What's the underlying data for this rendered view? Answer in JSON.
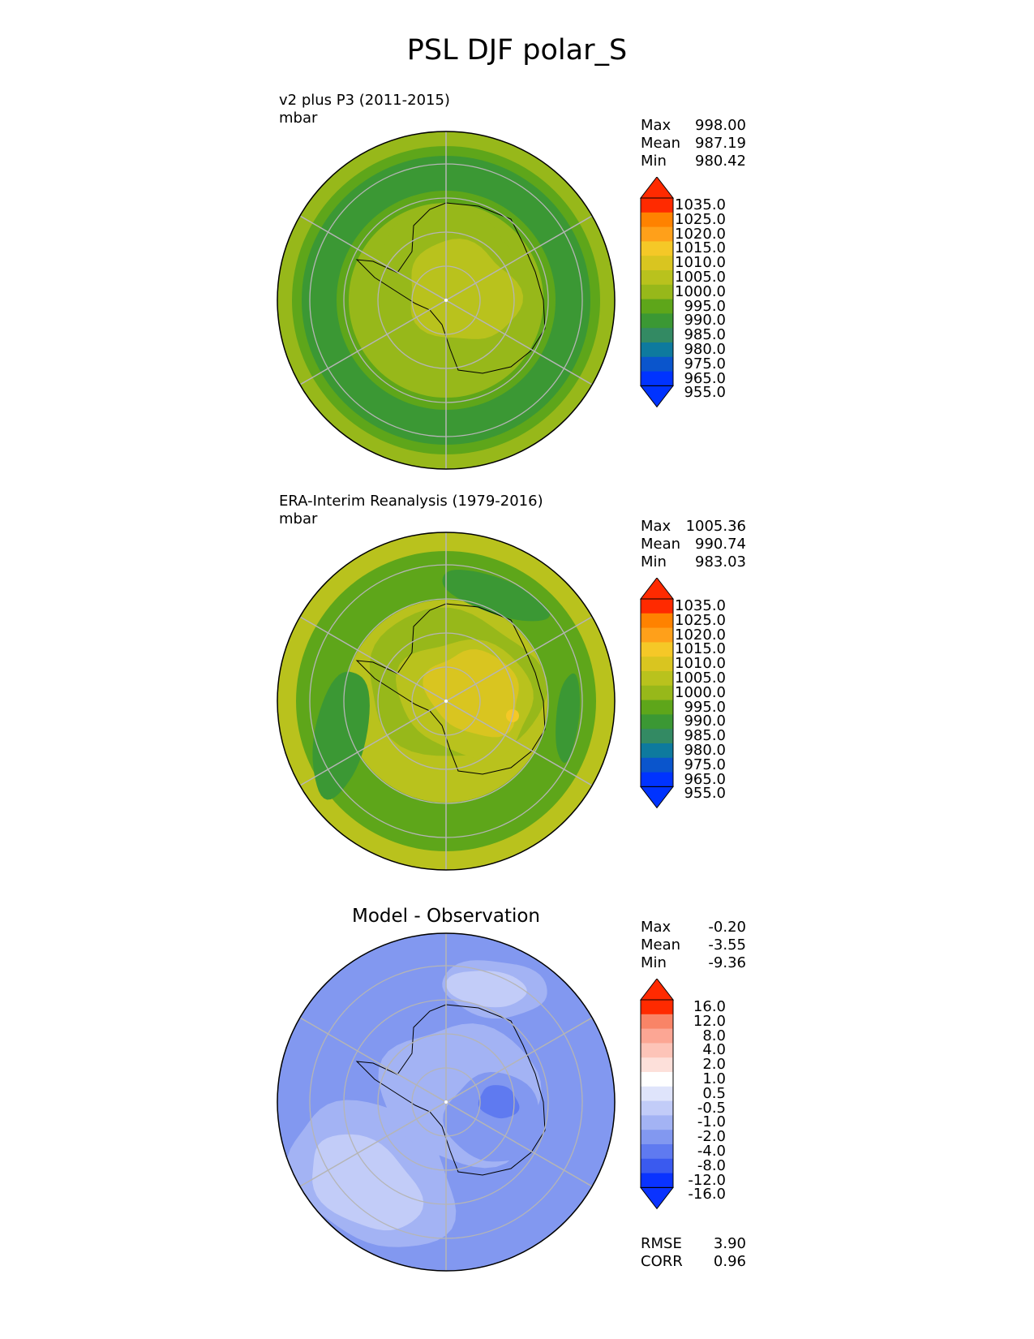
{
  "title": "PSL DJF polar_S",
  "panels": [
    {
      "title": "v2 plus P3 (2011-2015)",
      "units": "mbar",
      "stats": [
        {
          "label": "Max",
          "value": "998.00"
        },
        {
          "label": "Mean",
          "value": "987.19"
        },
        {
          "label": "Min",
          "value": "980.42"
        }
      ]
    },
    {
      "title": "ERA-Interim Reanalysis (1979-2016)",
      "units": "mbar",
      "stats": [
        {
          "label": "Max",
          "value": "1005.36"
        },
        {
          "label": "Mean",
          "value": "990.74"
        },
        {
          "label": "Min",
          "value": "983.03"
        }
      ]
    },
    {
      "title": "Model - Observation",
      "stats": [
        {
          "label": "Max",
          "value": "-0.20"
        },
        {
          "label": "Mean",
          "value": "-3.55"
        },
        {
          "label": "Min",
          "value": "-9.36"
        }
      ],
      "metrics": [
        {
          "label": "RMSE",
          "value": "3.90"
        },
        {
          "label": "CORR",
          "value": "0.96"
        }
      ]
    }
  ],
  "chart_data": [
    {
      "type": "heatmap",
      "projection": "south-polar-stereographic",
      "title": "v2 plus P3 (2011-2015)",
      "units": "mbar",
      "colorbar": {
        "labels": [
          "1035.0",
          "1025.0",
          "1020.0",
          "1015.0",
          "1010.0",
          "1005.0",
          "1000.0",
          "995.0",
          "990.0",
          "985.0",
          "980.0",
          "975.0",
          "965.0",
          "955.0"
        ],
        "colors": [
          "#ff2a00",
          "#ff6500",
          "#ff8200",
          "#ffa01a",
          "#f5c827",
          "#d9c520",
          "#b9c21d",
          "#97b81a",
          "#5ea61a",
          "#3b9834",
          "#338a63",
          "#0e7a9e",
          "#0a55cc",
          "#0033ff"
        ],
        "extend": "both"
      },
      "stats": {
        "max": 998.0,
        "mean": 987.19,
        "min": 980.42
      }
    },
    {
      "type": "heatmap",
      "projection": "south-polar-stereographic",
      "title": "ERA-Interim Reanalysis (1979-2016)",
      "units": "mbar",
      "colorbar": {
        "labels": [
          "1035.0",
          "1025.0",
          "1020.0",
          "1015.0",
          "1010.0",
          "1005.0",
          "1000.0",
          "995.0",
          "990.0",
          "985.0",
          "980.0",
          "975.0",
          "965.0",
          "955.0"
        ],
        "colors": [
          "#ff2a00",
          "#ff6500",
          "#ff8200",
          "#ffa01a",
          "#f5c827",
          "#d9c520",
          "#b9c21d",
          "#97b81a",
          "#5ea61a",
          "#3b9834",
          "#338a63",
          "#0e7a9e",
          "#0a55cc",
          "#0033ff"
        ],
        "extend": "both"
      },
      "stats": {
        "max": 1005.36,
        "mean": 990.74,
        "min": 983.03
      }
    },
    {
      "type": "heatmap",
      "projection": "south-polar-stereographic",
      "title": "Model - Observation",
      "colorbar": {
        "labels": [
          "16.0",
          "12.0",
          "8.0",
          "4.0",
          "2.0",
          "1.0",
          "0.5",
          "-0.5",
          "-1.0",
          "-2.0",
          "-4.0",
          "-8.0",
          "-12.0",
          "-16.0"
        ],
        "colors": [
          "#ff2a00",
          "#f65a3c",
          "#f98467",
          "#fca694",
          "#fdc4b8",
          "#fde0da",
          "#ffffff",
          "#dfe4fb",
          "#c2ccf8",
          "#a3b3f4",
          "#8298f0",
          "#5f7af0",
          "#3a5aef",
          "#0a33ff"
        ],
        "extend": "both"
      },
      "stats": {
        "max": -0.2,
        "mean": -3.55,
        "min": -9.36,
        "rmse": 3.9,
        "corr": 0.96
      }
    }
  ]
}
